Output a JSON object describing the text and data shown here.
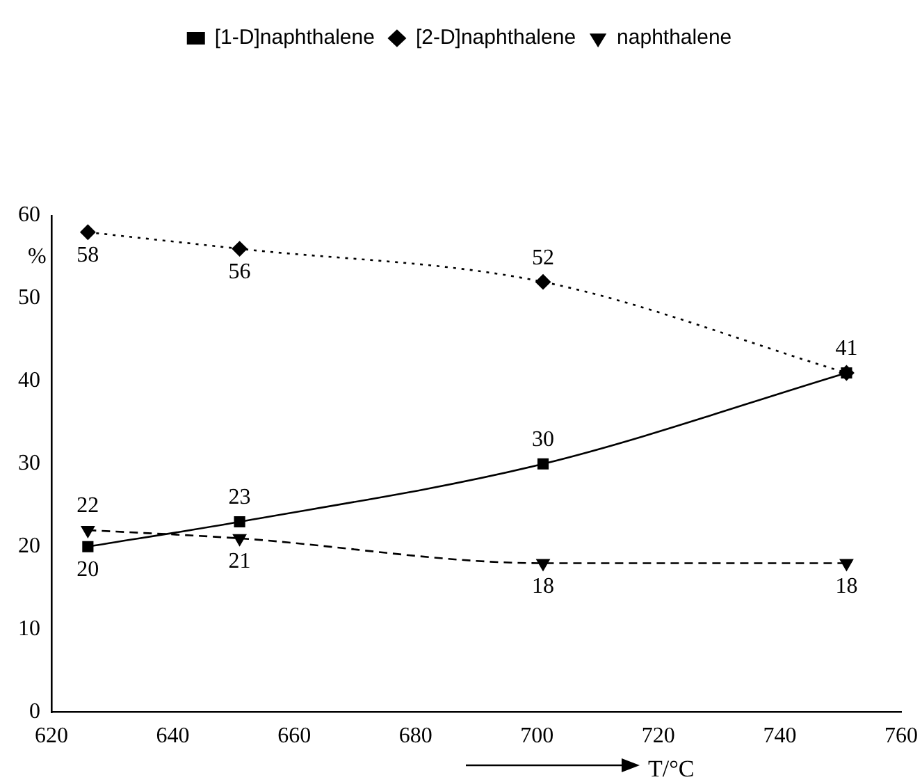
{
  "chart_data": {
    "type": "line",
    "xlabel": "T/°C",
    "ylabel": "%",
    "x": [
      626,
      651,
      701,
      751
    ],
    "series": [
      {
        "name": "[1-D]naphthalene",
        "color": "#000000",
        "marker": "square",
        "line_style": "solid",
        "values": [
          20,
          23,
          30,
          41
        ],
        "value_labels": [
          "20",
          "23",
          "30",
          "41"
        ]
      },
      {
        "name": "[2-D]naphthalene",
        "color": "#000000",
        "marker": "diamond",
        "line_style": "dotted",
        "values": [
          58,
          56,
          52,
          41
        ],
        "value_labels": [
          "58",
          "56",
          "52",
          null
        ]
      },
      {
        "name": "naphthalene",
        "color": "#000000",
        "marker": "triangle",
        "line_style": "dashed",
        "values": [
          22,
          21,
          18,
          18
        ],
        "value_labels": [
          "22",
          "21",
          "18",
          "18"
        ]
      }
    ],
    "xlim": [
      620,
      760
    ],
    "xticks": [
      620,
      640,
      660,
      680,
      700,
      720,
      740,
      760
    ],
    "ylim": [
      0,
      60
    ],
    "yticks": [
      0,
      10,
      20,
      30,
      40,
      50,
      60
    ],
    "grid": false,
    "legend": "top"
  }
}
